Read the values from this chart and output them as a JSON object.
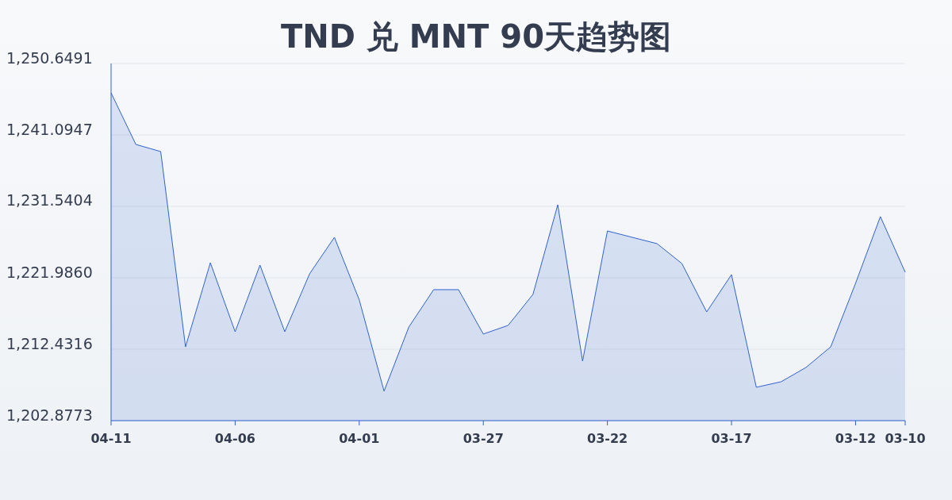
{
  "chart_data": {
    "type": "area",
    "title": "TND 兑 MNT 90天趋势图",
    "categories": [
      "04-11",
      null,
      null,
      null,
      null,
      "04-06",
      null,
      null,
      null,
      null,
      "04-01",
      null,
      null,
      null,
      null,
      "03-27",
      null,
      null,
      null,
      null,
      "03-22",
      null,
      null,
      null,
      null,
      "03-17",
      null,
      null,
      null,
      null,
      "03-12",
      null,
      "03-10"
    ],
    "series": [
      {
        "color": "#2f62d0",
        "values": [
          1246.72,
          1239.82,
          1238.87,
          1212.75,
          1224.0,
          1214.77,
          1223.68,
          1214.77,
          1222.52,
          1227.4,
          1219.03,
          1206.82,
          1215.41,
          1220.4,
          1220.4,
          1214.46,
          1215.62,
          1219.76,
          1231.75,
          1210.84,
          1228.25,
          1227.4,
          1226.55,
          1223.9,
          1217.42,
          1222.41,
          1207.34,
          1208.08,
          1209.99,
          1212.75,
          1221.25,
          1230.17,
          1222.73
        ]
      }
    ],
    "ylim": [
      1202.8773,
      1250.6491
    ],
    "yticks": [
      {
        "value": 1202.8773,
        "label": "1,202.8773"
      },
      {
        "value": 1212.4316,
        "label": "1,212.4316"
      },
      {
        "value": 1221.986,
        "label": "1,221.9860"
      },
      {
        "value": 1231.5404,
        "label": "1,231.5404"
      },
      {
        "value": 1241.0947,
        "label": "1,241.0947"
      },
      {
        "value": 1250.6491,
        "label": "1,250.6491"
      }
    ],
    "grid": "y"
  }
}
